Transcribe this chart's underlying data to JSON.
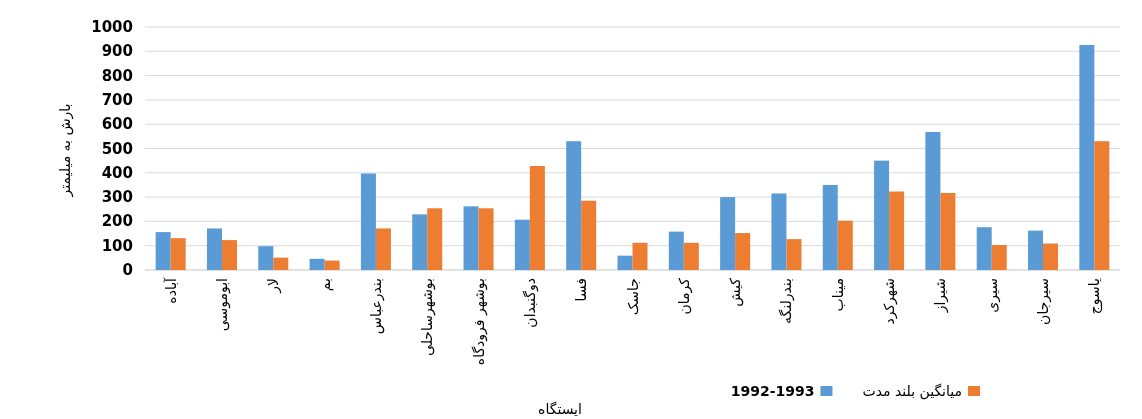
{
  "chart_data": {
    "type": "bar",
    "xlabel": "ایستگاه",
    "ylabel": "بارش به میلیمتر",
    "categories": [
      "آباده",
      "ابوموسی",
      "لار",
      "بم",
      "بندرعباس",
      "بوشهرساحلی",
      "بوشهر فرودگاه",
      "دوگنبدان",
      "فسا",
      "جاسک",
      "کرمان",
      "کیش",
      "بندرلنگه",
      "میناب",
      "شهرکرد",
      "شیراز",
      "سیری",
      "سیرجان",
      "یاسوج"
    ],
    "series": [
      {
        "name": "1992-1993",
        "color": "#5b9bd5",
        "values": [
          156,
          171,
          98,
          46,
          397,
          229,
          262,
          207,
          530,
          59,
          158,
          300,
          315,
          350,
          450,
          568,
          176,
          162,
          926
        ]
      },
      {
        "name": "میانگین بلند مدت",
        "color": "#ed7d31",
        "values": [
          131,
          123,
          51,
          39,
          171,
          254,
          254,
          428,
          285,
          112,
          112,
          152,
          127,
          203,
          323,
          317,
          103,
          109,
          530
        ]
      }
    ],
    "ylim": [
      0,
      1000
    ],
    "yticks": [
      0,
      100,
      200,
      300,
      400,
      500,
      600,
      700,
      800,
      900,
      1000
    ],
    "grid": "y",
    "legend": "bottom right"
  }
}
